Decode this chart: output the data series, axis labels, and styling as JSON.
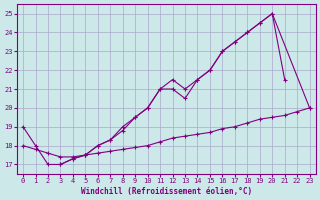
{
  "xlabel": "Windchill (Refroidissement éolien,°C)",
  "background_color": "#cce8e8",
  "grid_color": "#aaaacc",
  "line_color": "#800080",
  "x_values": [
    0,
    1,
    2,
    3,
    4,
    5,
    6,
    7,
    8,
    9,
    10,
    11,
    12,
    13,
    14,
    15,
    16,
    17,
    18,
    19,
    20,
    21,
    22,
    23
  ],
  "series1_x": [
    0,
    1,
    2,
    3,
    4,
    5,
    6,
    7,
    8,
    9,
    10,
    11,
    12,
    13,
    14,
    15,
    16,
    17,
    18,
    19,
    20,
    21
  ],
  "series1_y": [
    19.0,
    18.0,
    17.0,
    17.0,
    17.3,
    17.5,
    18.0,
    18.3,
    19.0,
    19.5,
    20.0,
    21.0,
    21.0,
    20.5,
    21.5,
    22.0,
    23.0,
    23.5,
    24.0,
    24.5,
    25.0,
    21.5
  ],
  "series2_x": [
    3,
    4,
    5,
    6,
    7,
    8,
    9,
    10,
    11,
    12,
    13,
    14,
    15,
    16,
    17,
    18,
    19,
    20,
    23
  ],
  "series2_y": [
    17.0,
    17.3,
    17.5,
    18.0,
    18.3,
    18.8,
    19.5,
    20.0,
    21.0,
    21.5,
    21.0,
    21.5,
    22.0,
    23.0,
    23.5,
    24.0,
    24.5,
    25.0,
    20.0
  ],
  "series3_x": [
    0,
    1,
    2,
    3,
    4,
    5,
    6,
    7,
    8,
    9,
    10,
    11,
    12,
    13,
    14,
    15,
    16,
    17,
    18,
    19,
    20,
    21,
    22,
    23
  ],
  "series3_y": [
    18.0,
    17.8,
    17.6,
    17.4,
    17.4,
    17.5,
    17.6,
    17.7,
    17.8,
    17.9,
    18.0,
    18.2,
    18.4,
    18.5,
    18.6,
    18.7,
    18.9,
    19.0,
    19.2,
    19.4,
    19.5,
    19.6,
    19.8,
    20.0
  ],
  "ylim": [
    16.5,
    25.5
  ],
  "yticks": [
    17,
    18,
    19,
    20,
    21,
    22,
    23,
    24,
    25
  ],
  "xlim": [
    -0.5,
    23.5
  ],
  "xticks": [
    0,
    1,
    2,
    3,
    4,
    5,
    6,
    7,
    8,
    9,
    10,
    11,
    12,
    13,
    14,
    15,
    16,
    17,
    18,
    19,
    20,
    21,
    22,
    23
  ]
}
